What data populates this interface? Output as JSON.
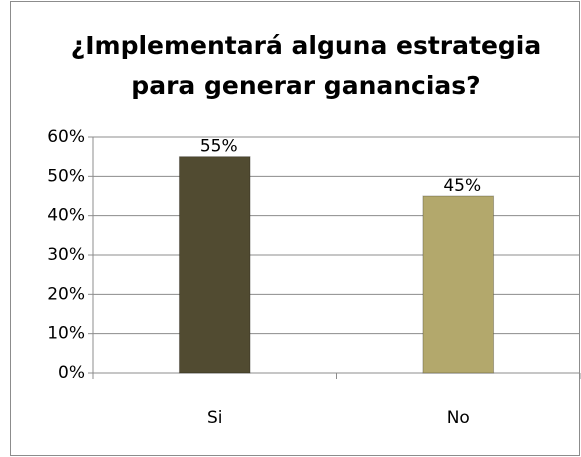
{
  "chart_data": {
    "type": "bar",
    "title": [
      "¿Implementará alguna estrategia",
      "para generar ganancias?"
    ],
    "categories": [
      "Si",
      "No"
    ],
    "values": [
      55,
      45
    ],
    "value_labels": [
      "55%",
      "45%"
    ],
    "colors": [
      "#514b31",
      "#b3a86c"
    ],
    "ylim": [
      0,
      60
    ],
    "yticks": [
      {
        "value": 0,
        "label": "0%"
      },
      {
        "value": 10,
        "label": "10%"
      },
      {
        "value": 20,
        "label": "20%"
      },
      {
        "value": 30,
        "label": "30%"
      },
      {
        "value": 40,
        "label": "40%"
      },
      {
        "value": 50,
        "label": "50%"
      },
      {
        "value": 60,
        "label": "60%"
      }
    ],
    "grid": true
  }
}
